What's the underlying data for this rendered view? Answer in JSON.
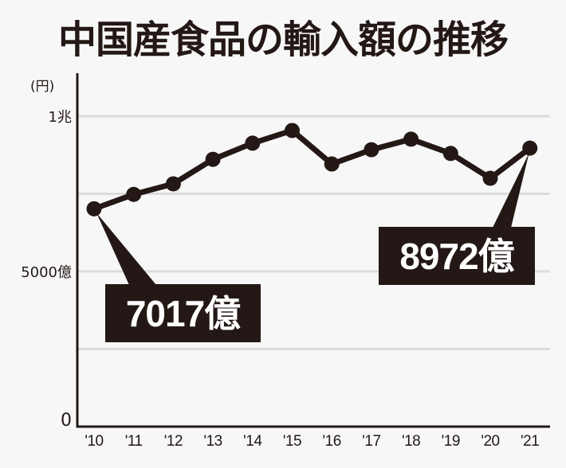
{
  "title": "中国産食品の輸入額の推移",
  "y_axis": {
    "unit_label": "(円)",
    "ticks": [
      {
        "label": "1兆",
        "value": 10000
      },
      {
        "label": "5000億",
        "value": 5000
      },
      {
        "label": "0",
        "value": 0
      }
    ]
  },
  "x_axis": {
    "ticks": [
      "'10",
      "'11",
      "'12",
      "'13",
      "'14",
      "'15",
      "'16",
      "'17",
      "'18",
      "'19",
      "'20",
      "'21"
    ]
  },
  "callouts": {
    "first": {
      "label": "7017億",
      "year": "'10"
    },
    "last": {
      "label": "8972億",
      "year": "'21"
    }
  },
  "colors": {
    "line": "#231815",
    "grid": "#dcdcdc",
    "background": "#f7f7f7",
    "callout_bg": "#231815",
    "callout_text": "#ffffff"
  },
  "chart_data": {
    "type": "line",
    "title": "中国産食品の輸入額の推移",
    "xlabel": "",
    "ylabel": "(円)",
    "unit": "億円",
    "categories": [
      "'10",
      "'11",
      "'12",
      "'13",
      "'14",
      "'15",
      "'16",
      "'17",
      "'18",
      "'19",
      "'20",
      "'21"
    ],
    "series": [
      {
        "name": "中国産食品の輸入額",
        "values": [
          7017,
          7480,
          7820,
          8610,
          9130,
          9540,
          8460,
          8920,
          9260,
          8800,
          8000,
          8972
        ]
      }
    ],
    "ylim": [
      0,
      10000
    ],
    "y_ticks": [
      0,
      5000,
      10000
    ],
    "y_tick_labels": [
      "0",
      "5000億",
      "1兆"
    ],
    "gridlines": [
      2500,
      5000,
      7500,
      10000
    ],
    "grid": true,
    "legend": "none",
    "annotations": [
      {
        "x": "'10",
        "text": "7017億"
      },
      {
        "x": "'21",
        "text": "8972億"
      }
    ]
  }
}
